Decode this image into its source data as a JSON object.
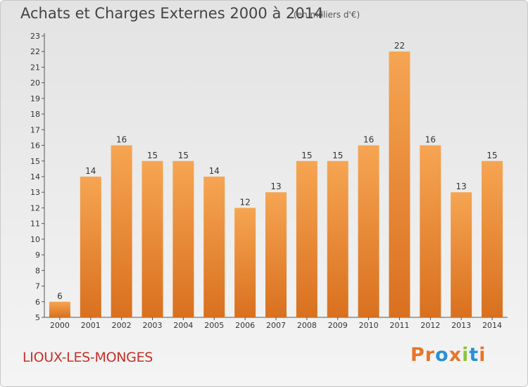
{
  "header": {
    "title": "Achats et Charges Externes 2000 à 2014",
    "unit": "(en milliers d'€)"
  },
  "footer": {
    "town": "LIOUX-LES-MONGES",
    "brand": "Proxiti"
  },
  "colors": {
    "bar_light": "#f6a552",
    "bar_dark": "#d9701f",
    "brand_letters": [
      "#e8742a",
      "#e8742a",
      "#2a8fd8",
      "#e8742a",
      "#8cc43c",
      "#2a8fd8",
      "#e8742a"
    ]
  },
  "chart_data": {
    "type": "bar",
    "title": "Achats et Charges Externes 2000 à 2014",
    "xlabel": "",
    "ylabel": "",
    "categories": [
      "2000",
      "2001",
      "2002",
      "2003",
      "2004",
      "2005",
      "2006",
      "2007",
      "2008",
      "2009",
      "2010",
      "2011",
      "2012",
      "2013",
      "2014"
    ],
    "values": [
      6,
      14,
      16,
      15,
      15,
      14,
      12,
      13,
      15,
      15,
      16,
      22,
      16,
      13,
      15
    ],
    "ylim": [
      5,
      23
    ],
    "yticks": [
      5,
      6,
      7,
      8,
      9,
      10,
      11,
      12,
      13,
      14,
      15,
      16,
      17,
      18,
      19,
      20,
      21,
      22,
      23
    ],
    "grid": false,
    "legend": "none"
  }
}
